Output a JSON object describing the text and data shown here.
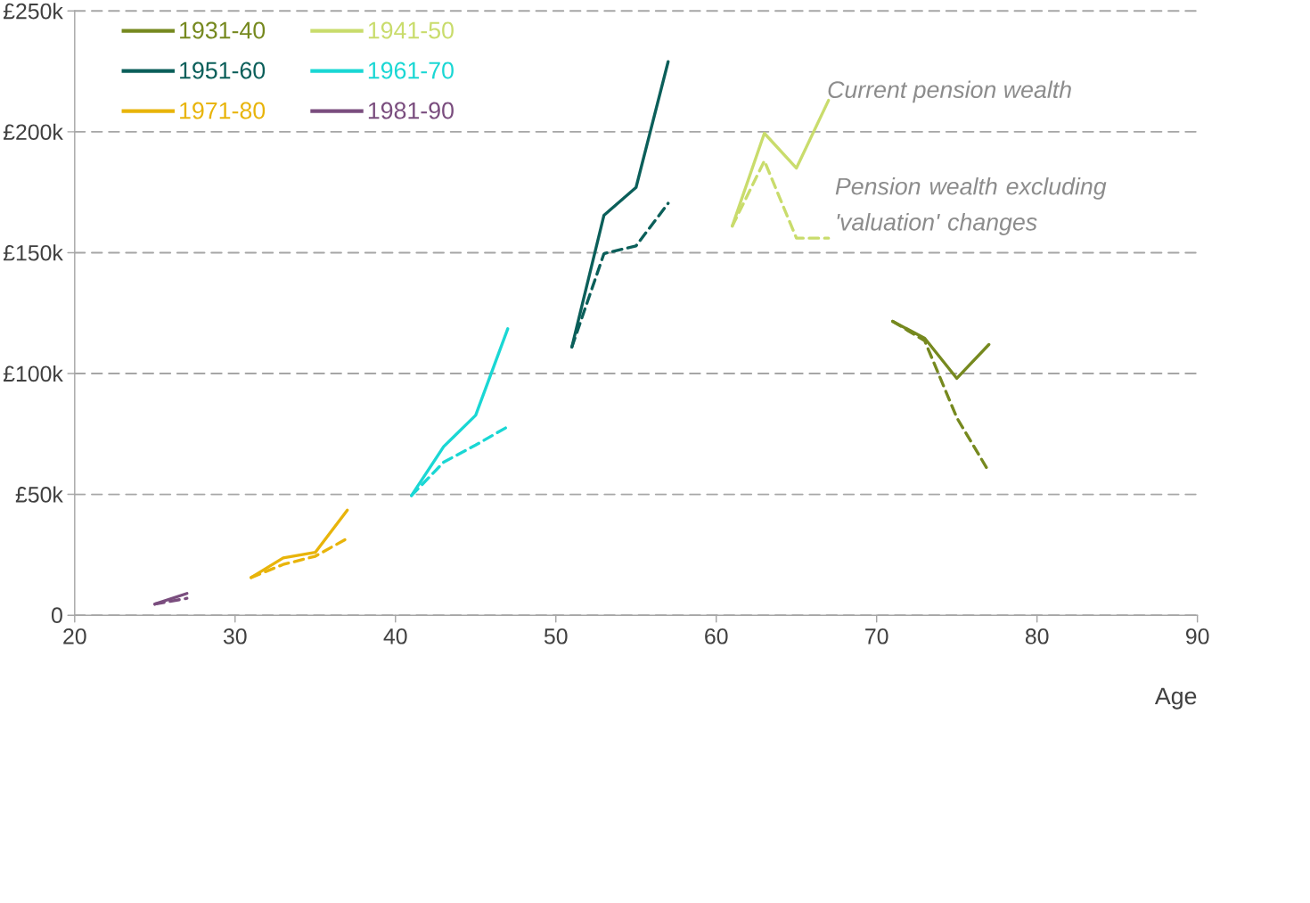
{
  "chart_data": {
    "type": "line",
    "xlabel": "Age",
    "xlim": [
      20,
      90
    ],
    "xticks": [
      20,
      30,
      40,
      50,
      60,
      70,
      80,
      90
    ],
    "ylim": [
      0,
      250
    ],
    "yticks": [
      0,
      {
        "value": 50,
        "label": "£50k"
      },
      {
        "value": 100,
        "label": "£100k"
      },
      {
        "value": 150,
        "label": "£150k"
      },
      {
        "value": 200,
        "label": "£200k"
      },
      {
        "value": 250,
        "label": "£250k"
      }
    ],
    "grid": "y",
    "legend": "top left",
    "marker": "none",
    "annotations": [
      "Current pension wealth",
      "Pension wealth excluding 'valuation' changes"
    ],
    "series": [
      {
        "name": "1931-40",
        "color": "#76891f",
        "line_style": "solid",
        "x": [
          71,
          73,
          75,
          77
        ],
        "values": [
          121.6,
          114.6,
          98,
          112
        ]
      },
      {
        "name": "1941-50",
        "color": "#c9dc6c",
        "line_style": "solid",
        "x": [
          61,
          63,
          65,
          67
        ],
        "values": [
          161,
          199.4,
          185,
          213
        ]
      },
      {
        "name": "1951-60",
        "color": "#0b5f5a",
        "line_style": "solid",
        "x": [
          51,
          53,
          55,
          57
        ],
        "values": [
          111,
          165.5,
          177,
          229
        ]
      },
      {
        "name": "1961-70",
        "color": "#1ad7d4",
        "line_style": "solid",
        "x": [
          41,
          43,
          45,
          47
        ],
        "values": [
          49.5,
          69.7,
          82.7,
          118.5
        ]
      },
      {
        "name": "1971-80",
        "color": "#e8b40a",
        "line_style": "solid",
        "x": [
          31,
          33,
          35,
          37
        ],
        "values": [
          15.6,
          23.7,
          26,
          43.5
        ]
      },
      {
        "name": "1981-90",
        "color": "#7a4d7e",
        "line_style": "solid",
        "x": [
          25,
          27
        ],
        "values": [
          4.6,
          9
        ]
      },
      {
        "color": "#76891f",
        "line_style": "dashed",
        "x": [
          71,
          73,
          75,
          77
        ],
        "values": [
          121.6,
          113.5,
          81.7,
          59.4
        ]
      },
      {
        "color": "#c9dc6c",
        "line_style": "dashed",
        "x": [
          61,
          63,
          65,
          67
        ],
        "values": [
          161,
          188,
          156,
          156
        ]
      },
      {
        "color": "#0b5f5a",
        "line_style": "dashed",
        "x": [
          51,
          53,
          55,
          57
        ],
        "values": [
          111,
          149.6,
          152.8,
          170.4
        ]
      },
      {
        "color": "#1ad7d4",
        "line_style": "dashed",
        "x": [
          41,
          43,
          45,
          47
        ],
        "values": [
          49.5,
          63.3,
          70.4,
          78
        ]
      },
      {
        "color": "#e8b40a",
        "line_style": "dashed",
        "x": [
          31,
          33,
          35,
          37
        ],
        "values": [
          15.6,
          21,
          24.4,
          31.8
        ]
      },
      {
        "color": "#7a4d7e",
        "line_style": "dashed",
        "x": [
          25,
          27
        ],
        "values": [
          4.6,
          7
        ]
      }
    ]
  }
}
